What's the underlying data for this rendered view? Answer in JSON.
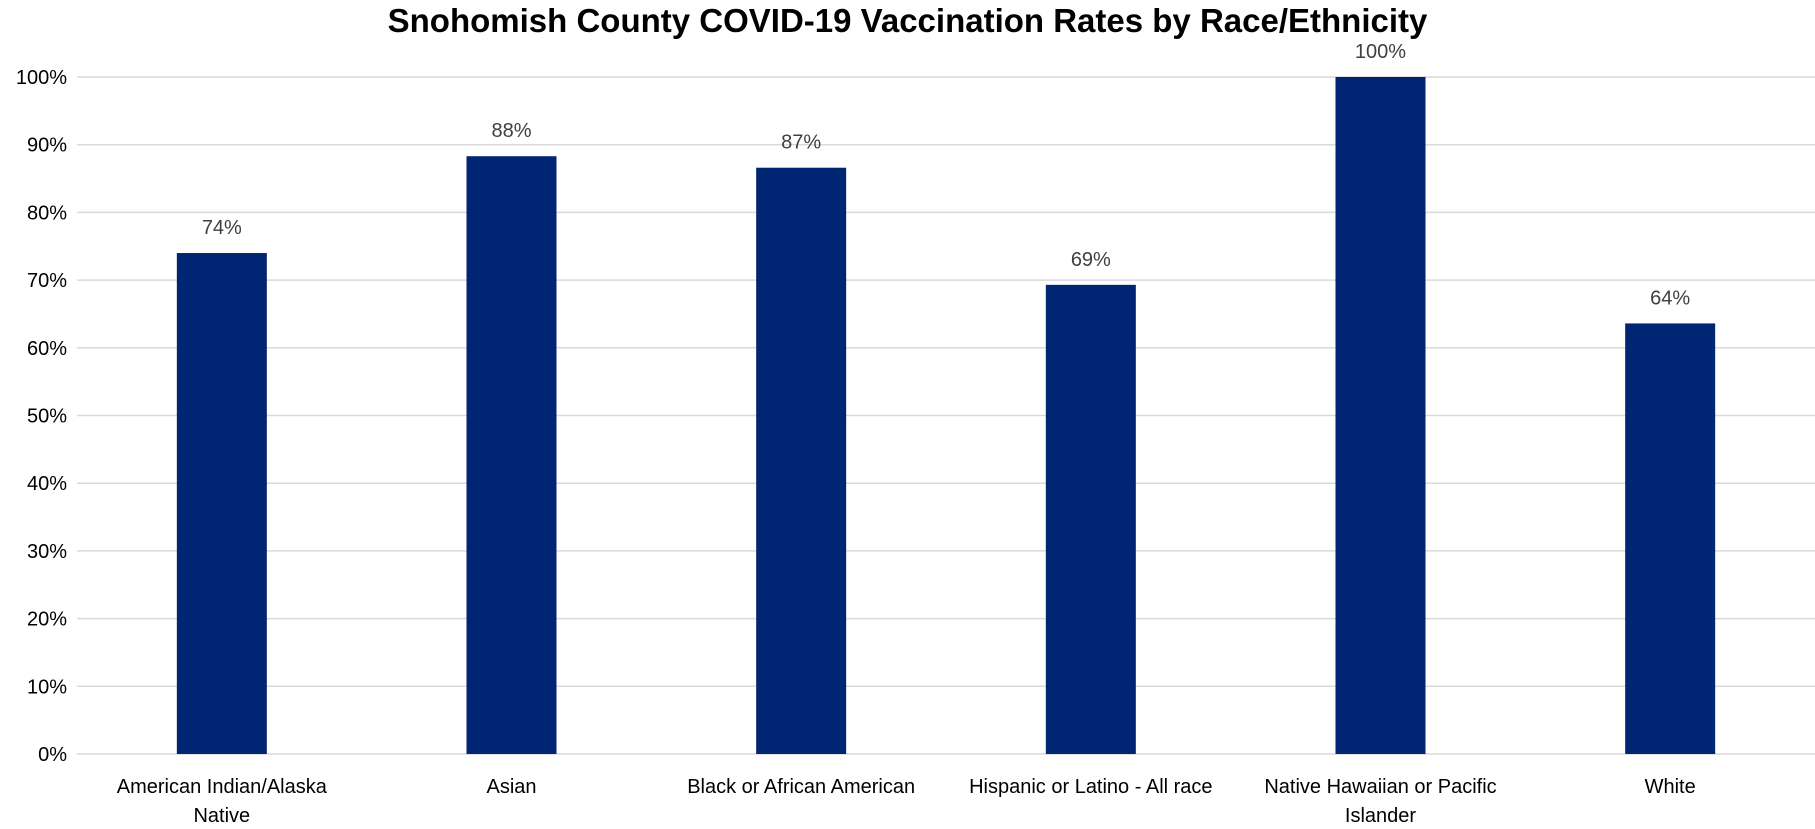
{
  "chart_data": {
    "type": "bar",
    "title": "Snohomish County COVID-19 Vaccination Rates by Race/Ethnicity",
    "categories": [
      [
        "American Indian/Alaska",
        "Native"
      ],
      [
        "Asian"
      ],
      [
        "Black or African American"
      ],
      [
        "Hispanic or Latino - All race"
      ],
      [
        "Native Hawaiian or Pacific",
        "Islander"
      ],
      [
        "White"
      ]
    ],
    "values": [
      74,
      88.3,
      86.6,
      69.3,
      100,
      63.6
    ],
    "data_labels": [
      "74%",
      "88%",
      "87%",
      "69%",
      "100%",
      "64%"
    ],
    "ylim": [
      0,
      100
    ],
    "yticks": [
      0,
      10,
      20,
      30,
      40,
      50,
      60,
      70,
      80,
      90,
      100
    ],
    "ytick_labels": [
      "0%",
      "10%",
      "20%",
      "30%",
      "40%",
      "50%",
      "60%",
      "70%",
      "80%",
      "90%",
      "100%"
    ],
    "xlabel": "",
    "ylabel": "",
    "grid": true,
    "legend": "none",
    "bar_color": "#002673",
    "grid_color": "#d9d9d9"
  }
}
